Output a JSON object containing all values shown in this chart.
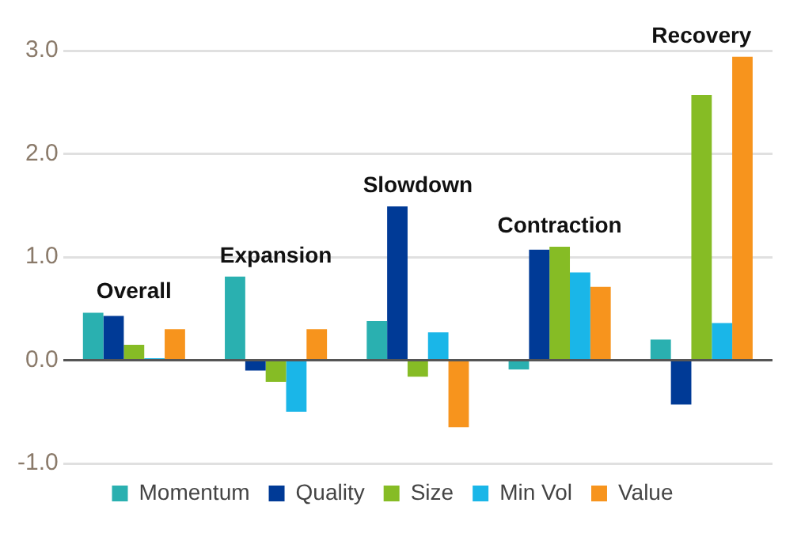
{
  "chart_data": {
    "type": "bar",
    "categories": [
      "Overall",
      "Expansion",
      "Slowdown",
      "Contraction",
      "Recovery"
    ],
    "series": [
      {
        "name": "Momentum",
        "color": "#2ab0b0",
        "values": [
          0.46,
          0.81,
          0.38,
          -0.09,
          0.2
        ]
      },
      {
        "name": "Quality",
        "color": "#003a96",
        "values": [
          0.43,
          -0.1,
          1.49,
          1.07,
          -0.43
        ]
      },
      {
        "name": "Size",
        "color": "#86bc25",
        "values": [
          0.15,
          -0.21,
          -0.16,
          1.1,
          2.57
        ]
      },
      {
        "name": "Min Vol",
        "color": "#1ab6e8",
        "values": [
          0.02,
          -0.5,
          0.27,
          0.85,
          0.36
        ]
      },
      {
        "name": "Value",
        "color": "#f7941d",
        "values": [
          0.3,
          0.3,
          -0.65,
          0.71,
          2.94
        ]
      }
    ],
    "ylim": [
      -1,
      3
    ],
    "yticks": [
      {
        "value": -1,
        "label": "-1.0"
      },
      {
        "value": 0,
        "label": "0.0"
      },
      {
        "value": 1,
        "label": "1.0"
      },
      {
        "value": 2,
        "label": "2.0"
      },
      {
        "value": 3,
        "label": "3.0"
      }
    ],
    "grid": "y",
    "legend": "bottom"
  }
}
